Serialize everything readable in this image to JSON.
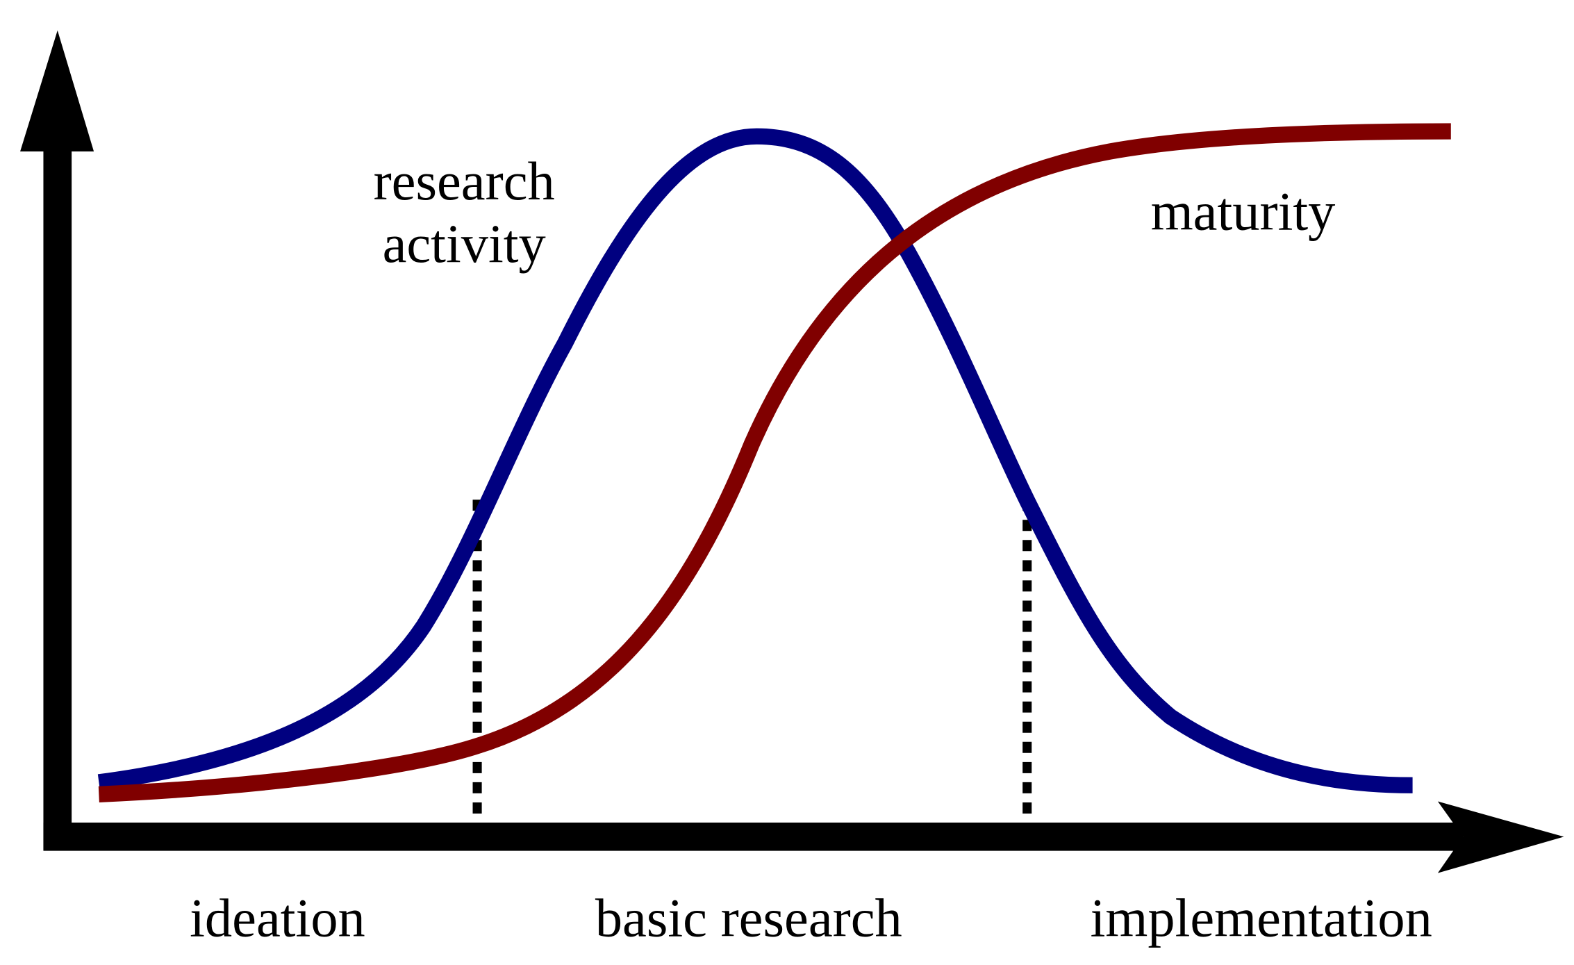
{
  "curves": [
    {
      "label": [
        "research",
        "activity"
      ]
    },
    {
      "label": [
        "maturity"
      ]
    }
  ],
  "phases": [
    "ideation",
    "basic research",
    "implementation"
  ]
}
